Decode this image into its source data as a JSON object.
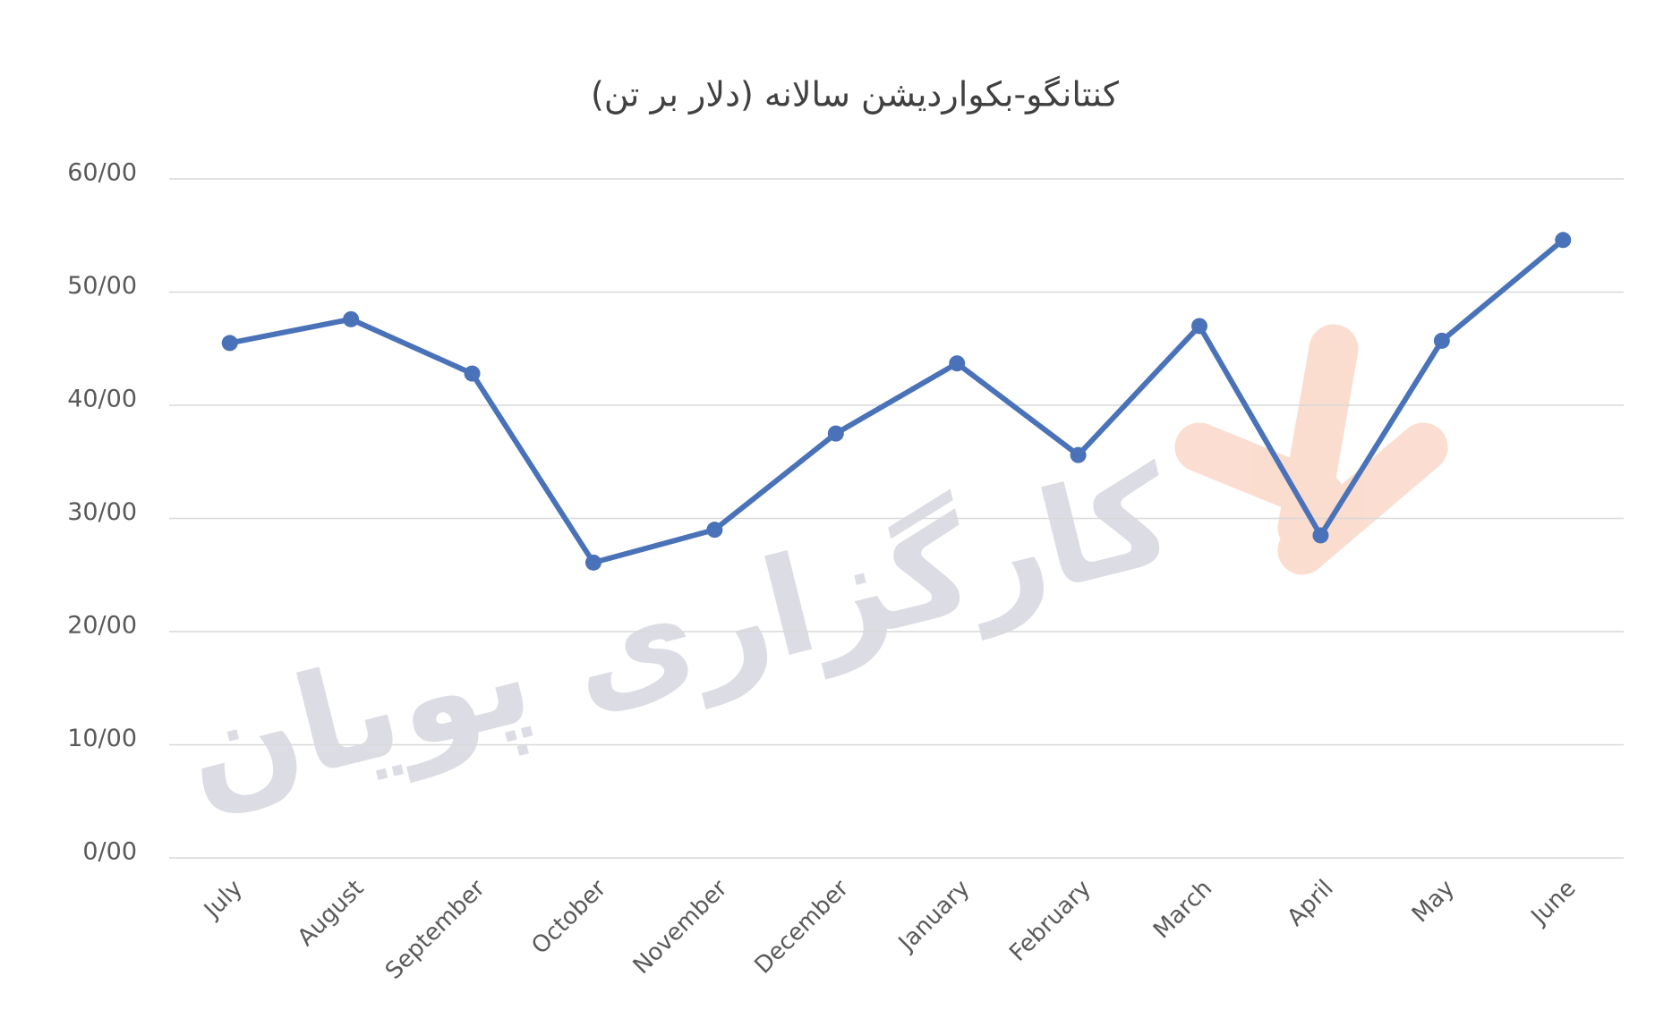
{
  "chart_data": {
    "type": "line",
    "title": "کنتانگو-بکواردیشن سالانه (دلار بر تن)",
    "watermark": "کارگزاری پویان",
    "categories": [
      "July",
      "August",
      "September",
      "October",
      "November",
      "December",
      "January",
      "February",
      "March",
      "April",
      "May",
      "June"
    ],
    "series": [
      {
        "color": "#4a72b8",
        "values": [
          45.5,
          47.6,
          42.8,
          26.1,
          29.0,
          37.5,
          43.7,
          35.6,
          47.0,
          28.5,
          45.7,
          54.6
        ]
      }
    ],
    "ylim": [
      0,
      60
    ],
    "yticks": [
      {
        "value": 0,
        "label": "0/00"
      },
      {
        "value": 10,
        "label": "10/00"
      },
      {
        "value": 20,
        "label": "20/00"
      },
      {
        "value": 30,
        "label": "30/00"
      },
      {
        "value": 40,
        "label": "40/00"
      },
      {
        "value": 50,
        "label": "50/00"
      },
      {
        "value": 60,
        "label": "60/00"
      }
    ],
    "grid": true
  }
}
